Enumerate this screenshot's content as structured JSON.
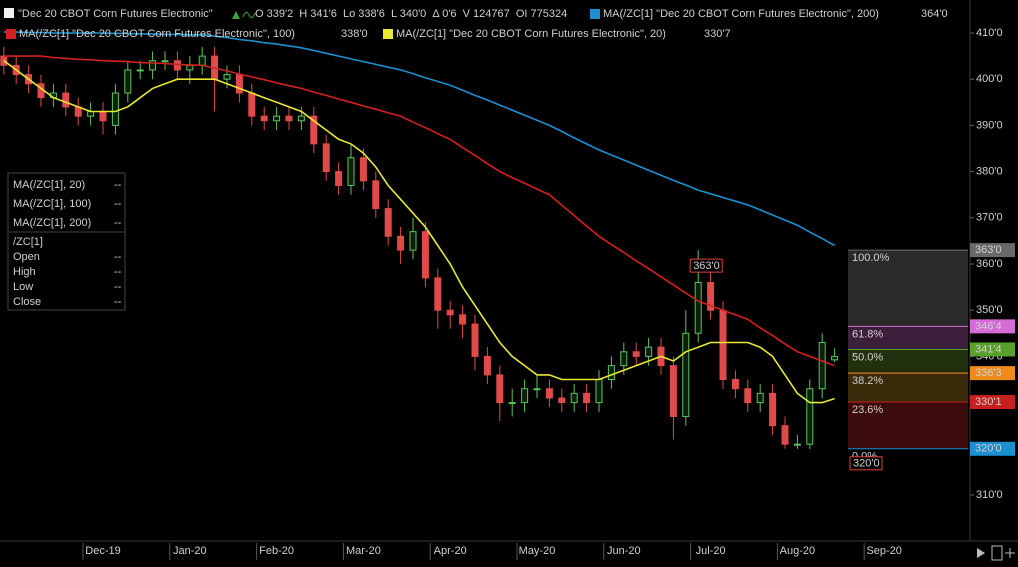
{
  "chart_data": {
    "type": "candlestick",
    "title": "\"Dec 20 CBOT Corn Futures Electronic\"",
    "status": "O 339'2  H 341'6  Lo 338'6  L 340'0  Δ 0'6  V 124767  OI 775324",
    "categories": [
      null,
      null,
      null,
      null,
      null,
      null,
      null,
      null,
      "Dec-19",
      null,
      null,
      null,
      null,
      null,
      null,
      "Jan-20",
      null,
      null,
      null,
      null,
      null,
      null,
      "Feb-20",
      null,
      null,
      null,
      null,
      null,
      null,
      "Mar-20",
      null,
      null,
      null,
      null,
      null,
      null,
      "Apr-20",
      null,
      null,
      null,
      null,
      null,
      null,
      "May-20",
      null,
      null,
      null,
      null,
      null,
      null,
      "Jun-20",
      null,
      null,
      null,
      null,
      null,
      null,
      "Jul-20",
      null,
      null,
      null,
      null,
      null,
      null,
      "Aug-20",
      null,
      null,
      null,
      null,
      null,
      null,
      "Sep-20"
    ],
    "open": [
      405,
      403,
      401,
      399,
      396,
      397,
      394,
      392,
      393,
      390,
      397,
      402,
      402,
      404,
      404,
      402,
      403,
      405,
      400,
      401,
      397,
      392,
      391,
      392,
      391,
      392,
      386,
      380,
      377,
      383,
      378,
      372,
      366,
      363,
      367,
      357,
      350,
      349,
      347,
      340,
      336,
      330,
      330,
      333,
      333,
      331,
      330,
      332,
      330,
      335,
      338,
      341,
      340,
      342,
      338,
      327,
      345,
      356,
      350,
      335,
      333,
      330,
      332,
      325,
      321,
      321,
      333,
      339.25,
      null,
      null,
      null,
      null
    ],
    "high": [
      407,
      405,
      403,
      401,
      399,
      399,
      396,
      395,
      395,
      399,
      404,
      404,
      406,
      406,
      406,
      405,
      407,
      407,
      403,
      403,
      399,
      394,
      394,
      394,
      394,
      394,
      388,
      382,
      386,
      385,
      380,
      374,
      368,
      370,
      369,
      359,
      352,
      351,
      349,
      342,
      338,
      333,
      335,
      336,
      335,
      333,
      334,
      334,
      337,
      340,
      343,
      343,
      344,
      344,
      340,
      350,
      363,
      360,
      352,
      337,
      335,
      334,
      334,
      327,
      323,
      335,
      345,
      341.75,
      null,
      null,
      null,
      null
    ],
    "low": [
      401,
      399,
      397,
      394,
      394,
      392,
      390,
      390,
      388,
      388,
      395,
      400,
      400,
      402,
      400,
      399,
      401,
      393,
      398,
      395,
      390,
      389,
      389,
      389,
      389,
      384,
      378,
      375,
      375,
      376,
      370,
      364,
      360,
      361,
      355,
      346,
      346,
      344,
      337,
      334,
      326,
      327,
      328,
      331,
      329,
      328,
      328,
      328,
      328,
      333,
      336,
      338,
      338,
      336,
      322,
      325,
      343,
      348,
      333,
      331,
      328,
      328,
      323,
      320,
      320,
      320,
      331,
      338.75,
      null,
      null,
      null,
      null
    ],
    "close": [
      403,
      401,
      399,
      396,
      397,
      394,
      392,
      393,
      391,
      397,
      402,
      402,
      404,
      404,
      402,
      403,
      405,
      400,
      401,
      397,
      392,
      391,
      392,
      391,
      392,
      386,
      380,
      377,
      383,
      378,
      372,
      366,
      363,
      367,
      357,
      350,
      349,
      347,
      340,
      336,
      330,
      330,
      333,
      333,
      331,
      330,
      332,
      330,
      335,
      338,
      341,
      340,
      342,
      338,
      327,
      345,
      356,
      350,
      335,
      333,
      330,
      332,
      325,
      321,
      321,
      333,
      343,
      340,
      null,
      null,
      null,
      null
    ],
    "up_color": "#5cc45c",
    "down_color": "#e04a4a",
    "overlays": [
      {
        "name": "MA(/ZC[1] \"Dec 20 CBOT Corn Futures Electronic\", 200)",
        "color": "#1e8fd0",
        "last_label": "364'0",
        "values": [
          410.2,
          410.2,
          410.1,
          410.1,
          410,
          410,
          410,
          410,
          410,
          409.9,
          409.9,
          409.8,
          409.8,
          409.7,
          409.7,
          409.6,
          409.6,
          409.3,
          409,
          408.6,
          408.3,
          407.9,
          407.6,
          407.2,
          406.8,
          406.2,
          405.6,
          405,
          404.4,
          403.8,
          403.2,
          402.6,
          402,
          401.2,
          400.3,
          399.5,
          398.7,
          397.6,
          396.5,
          395.5,
          394.4,
          393.3,
          392.2,
          391.1,
          390,
          388.7,
          387.3,
          386,
          384.7,
          383.6,
          382.5,
          381.4,
          380.3,
          379.2,
          378.1,
          377.1,
          376,
          375.2,
          374.4,
          373.6,
          372.8,
          371.7,
          370.6,
          369.5,
          368.4,
          366.9,
          365.5,
          364,
          null,
          null,
          null,
          null
        ]
      },
      {
        "name": "MA(/ZC[1] \"Dec 20 CBOT Corn Futures Electronic\", 100)",
        "color": "#d42020",
        "last_label": "338'0",
        "values": [
          405,
          405,
          405,
          405,
          404.7,
          404.5,
          404.3,
          404.2,
          404,
          403.9,
          403.8,
          403.6,
          403.5,
          403.4,
          403.2,
          403.1,
          403,
          402.4,
          401.8,
          401.1,
          400.5,
          399.9,
          399.2,
          398.6,
          398,
          397.2,
          396.5,
          395.7,
          395,
          394.2,
          393.5,
          392.7,
          392,
          390.7,
          389.5,
          388.2,
          387,
          385.2,
          383.5,
          381.7,
          380,
          378.7,
          377.5,
          376.2,
          375,
          372.7,
          370.5,
          368.2,
          366,
          364.2,
          362.5,
          360.7,
          359,
          357.2,
          355.5,
          353.7,
          352,
          351,
          350,
          349,
          348,
          346.2,
          344.5,
          342.7,
          341,
          340,
          339,
          338,
          null,
          null,
          null,
          null
        ]
      },
      {
        "name": "MA(/ZC[1] \"Dec 20 CBOT Corn Futures Electronic\", 20)",
        "color": "#e8e832",
        "last_label": "330'7",
        "values": [
          404,
          402,
          400,
          398,
          396,
          395,
          394,
          393,
          393,
          393,
          394,
          396,
          398,
          399,
          400,
          400,
          400,
          400,
          399,
          398,
          397,
          396,
          395,
          394,
          393,
          391,
          389,
          387,
          386,
          384,
          381,
          377,
          374,
          371,
          368,
          364,
          360,
          355,
          351,
          347,
          343,
          340,
          338,
          336,
          336,
          335,
          335,
          335,
          335,
          336,
          337,
          338,
          339,
          340,
          339,
          341,
          342,
          343,
          343,
          343,
          343,
          342,
          340,
          336,
          332,
          330,
          330,
          330.875,
          null,
          null,
          null,
          null
        ]
      }
    ],
    "ylim": [
      300.26,
      417.14
    ],
    "yticks": [
      {
        "value": 310,
        "label": "310'0"
      },
      {
        "value": 320,
        "label": "320'0"
      },
      {
        "value": 330,
        "label": "330'0"
      },
      {
        "value": 340,
        "label": "340'0"
      },
      {
        "value": 350,
        "label": "350'0"
      },
      {
        "value": 360,
        "label": "360'0"
      },
      {
        "value": 370,
        "label": "370'0"
      },
      {
        "value": 380,
        "label": "380'0"
      },
      {
        "value": 390,
        "label": "390'0"
      },
      {
        "value": 400,
        "label": "400'0"
      },
      {
        "value": 410,
        "label": "410'0"
      }
    ],
    "grid": false,
    "fib": {
      "levels": [
        {
          "label": "100.0%",
          "value": 363,
          "value_label": "363'0",
          "color": "#6a6a6a",
          "text_color": "#d8d8d8"
        },
        {
          "label": "61.8%",
          "value": 346.5,
          "value_label": "346'4",
          "color": "#d66ad6",
          "text_color": "#111111"
        },
        {
          "label": "50.0%",
          "value": 341.5,
          "value_label": "341'4",
          "color": "#5aa02c",
          "text_color": "#111111"
        },
        {
          "label": "38.2%",
          "value": 336.375,
          "value_label": "336'3",
          "color": "#f08a1c",
          "text_color": "#111111"
        },
        {
          "label": "23.6%",
          "value": 330.125,
          "value_label": "330'1",
          "color": "#c8201e",
          "text_color": "#eeeeee"
        },
        {
          "label": "0.0%",
          "value": 320,
          "value_label": "320'0",
          "color": "#1c8fd0",
          "text_color": "#eeeeee"
        }
      ],
      "band_colors": [
        "#2a2a2a",
        "#3b1f3b",
        "#22300f",
        "#3a2a0a",
        "#3c0c0c"
      ],
      "marker_color": "#e04040"
    },
    "side_panel": {
      "studies": [
        {
          "name": "MA(/ZC[1], 20)",
          "value": "--",
          "color": "#e8e832"
        },
        {
          "name": "MA(/ZC[1], 100)",
          "value": "--",
          "color": "#d42020"
        },
        {
          "name": "MA(/ZC[1], 200)",
          "value": "--",
          "color": "#1e8fd0"
        }
      ],
      "symbol": "/ZC[1]",
      "fields": [
        {
          "name": "Open",
          "value": "--"
        },
        {
          "name": "High",
          "value": "--"
        },
        {
          "name": "Low",
          "value": "--"
        },
        {
          "name": "Close",
          "value": "--"
        }
      ]
    }
  }
}
